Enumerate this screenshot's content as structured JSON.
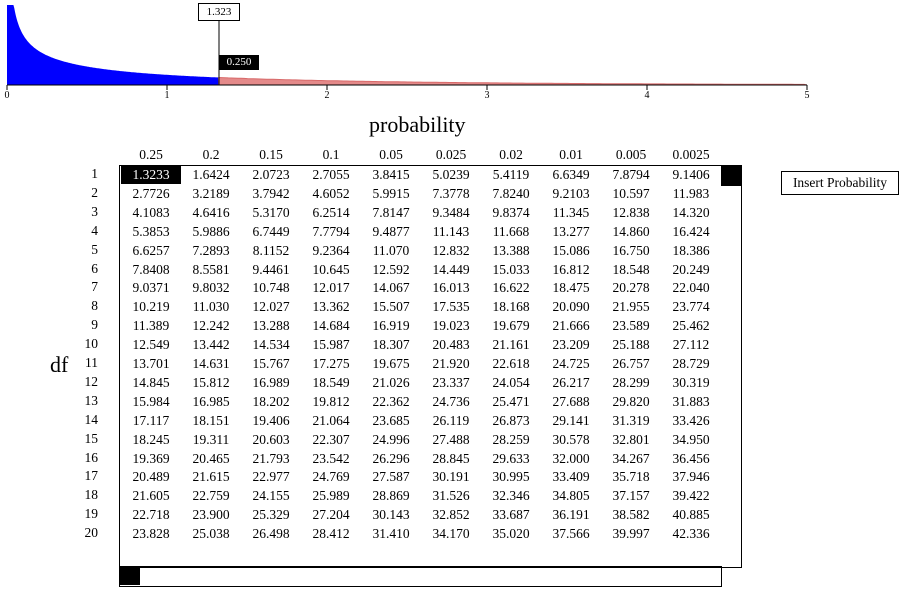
{
  "callout_value": "1.323",
  "tail_probability": "0.250",
  "x_ticks": [
    "0",
    "1",
    "2",
    "3",
    "4",
    "5"
  ],
  "probability_title": "probability",
  "df_label": "df",
  "insert_button": "Insert Probability",
  "colors": {
    "fill": "#0000ff",
    "tail": "#e48a8a",
    "selected": "#000000"
  },
  "columns": [
    "0.25",
    "0.2",
    "0.15",
    "0.1",
    "0.05",
    "0.025",
    "0.02",
    "0.01",
    "0.005",
    "0.0025"
  ],
  "rows": [
    {
      "df": "1",
      "values": [
        "1.3233",
        "1.6424",
        "2.0723",
        "2.7055",
        "3.8415",
        "5.0239",
        "5.4119",
        "6.6349",
        "7.8794",
        "9.1406"
      ]
    },
    {
      "df": "2",
      "values": [
        "2.7726",
        "3.2189",
        "3.7942",
        "4.6052",
        "5.9915",
        "7.3778",
        "7.8240",
        "9.2103",
        "10.597",
        "11.983"
      ]
    },
    {
      "df": "3",
      "values": [
        "4.1083",
        "4.6416",
        "5.3170",
        "6.2514",
        "7.8147",
        "9.3484",
        "9.8374",
        "11.345",
        "12.838",
        "14.320"
      ]
    },
    {
      "df": "4",
      "values": [
        "5.3853",
        "5.9886",
        "6.7449",
        "7.7794",
        "9.4877",
        "11.143",
        "11.668",
        "13.277",
        "14.860",
        "16.424"
      ]
    },
    {
      "df": "5",
      "values": [
        "6.6257",
        "7.2893",
        "8.1152",
        "9.2364",
        "11.070",
        "12.832",
        "13.388",
        "15.086",
        "16.750",
        "18.386"
      ]
    },
    {
      "df": "6",
      "values": [
        "7.8408",
        "8.5581",
        "9.4461",
        "10.645",
        "12.592",
        "14.449",
        "15.033",
        "16.812",
        "18.548",
        "20.249"
      ]
    },
    {
      "df": "7",
      "values": [
        "9.0371",
        "9.8032",
        "10.748",
        "12.017",
        "14.067",
        "16.013",
        "16.622",
        "18.475",
        "20.278",
        "22.040"
      ]
    },
    {
      "df": "8",
      "values": [
        "10.219",
        "11.030",
        "12.027",
        "13.362",
        "15.507",
        "17.535",
        "18.168",
        "20.090",
        "21.955",
        "23.774"
      ]
    },
    {
      "df": "9",
      "values": [
        "11.389",
        "12.242",
        "13.288",
        "14.684",
        "16.919",
        "19.023",
        "19.679",
        "21.666",
        "23.589",
        "25.462"
      ]
    },
    {
      "df": "10",
      "values": [
        "12.549",
        "13.442",
        "14.534",
        "15.987",
        "18.307",
        "20.483",
        "21.161",
        "23.209",
        "25.188",
        "27.112"
      ]
    },
    {
      "df": "11",
      "values": [
        "13.701",
        "14.631",
        "15.767",
        "17.275",
        "19.675",
        "21.920",
        "22.618",
        "24.725",
        "26.757",
        "28.729"
      ]
    },
    {
      "df": "12",
      "values": [
        "14.845",
        "15.812",
        "16.989",
        "18.549",
        "21.026",
        "23.337",
        "24.054",
        "26.217",
        "28.299",
        "30.319"
      ]
    },
    {
      "df": "13",
      "values": [
        "15.984",
        "16.985",
        "18.202",
        "19.812",
        "22.362",
        "24.736",
        "25.471",
        "27.688",
        "29.820",
        "31.883"
      ]
    },
    {
      "df": "14",
      "values": [
        "17.117",
        "18.151",
        "19.406",
        "21.064",
        "23.685",
        "26.119",
        "26.873",
        "29.141",
        "31.319",
        "33.426"
      ]
    },
    {
      "df": "15",
      "values": [
        "18.245",
        "19.311",
        "20.603",
        "22.307",
        "24.996",
        "27.488",
        "28.259",
        "30.578",
        "32.801",
        "34.950"
      ]
    },
    {
      "df": "16",
      "values": [
        "19.369",
        "20.465",
        "21.793",
        "23.542",
        "26.296",
        "28.845",
        "29.633",
        "32.000",
        "34.267",
        "36.456"
      ]
    },
    {
      "df": "17",
      "values": [
        "20.489",
        "21.615",
        "22.977",
        "24.769",
        "27.587",
        "30.191",
        "30.995",
        "33.409",
        "35.718",
        "37.946"
      ]
    },
    {
      "df": "18",
      "values": [
        "21.605",
        "22.759",
        "24.155",
        "25.989",
        "28.869",
        "31.526",
        "32.346",
        "34.805",
        "37.157",
        "39.422"
      ]
    },
    {
      "df": "19",
      "values": [
        "22.718",
        "23.900",
        "25.329",
        "27.204",
        "30.143",
        "32.852",
        "33.687",
        "36.191",
        "38.582",
        "40.885"
      ]
    },
    {
      "df": "20",
      "values": [
        "23.828",
        "25.038",
        "26.498",
        "28.412",
        "31.410",
        "34.170",
        "35.020",
        "37.566",
        "39.997",
        "42.336"
      ]
    }
  ]
}
